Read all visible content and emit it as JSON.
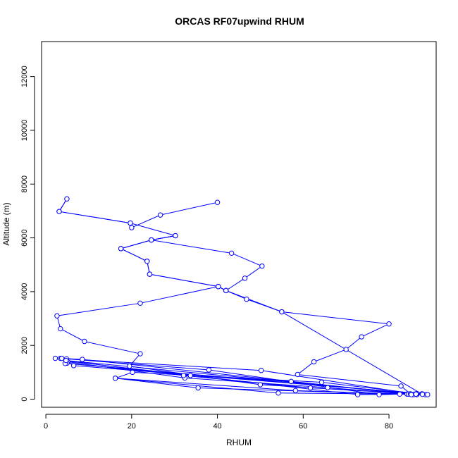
{
  "chart_data": {
    "type": "line",
    "title": "ORCAS RF07upwind RHUM",
    "xlabel": "RHUM",
    "ylabel": "Altitude (m)",
    "xlim": [
      -1,
      91
    ],
    "ylim": [
      -300,
      13300
    ],
    "x_ticks": [
      0,
      20,
      40,
      60,
      80
    ],
    "x_tick_labels": [
      "0",
      "20",
      "40",
      "60",
      "80"
    ],
    "y_ticks": [
      0,
      2000,
      4000,
      6000,
      8000,
      10000,
      12000
    ],
    "y_tick_labels": [
      "0",
      "2000",
      "4000",
      "6000",
      "8000",
      "10000",
      "12000"
    ],
    "grid": false,
    "series": [
      {
        "color": "#0000ff",
        "marker": "open-circle",
        "points": [
          {
            "x": 40.0,
            "y": 7320
          },
          {
            "x": 26.7,
            "y": 6850
          },
          {
            "x": 20.0,
            "y": 6380
          },
          {
            "x": 19.7,
            "y": 6550
          },
          {
            "x": 3.1,
            "y": 6980
          },
          {
            "x": 4.9,
            "y": 7450
          },
          {
            "x": 3.1,
            "y": 6980
          },
          {
            "x": 19.7,
            "y": 6550
          },
          {
            "x": 30.2,
            "y": 6080
          },
          {
            "x": 24.6,
            "y": 5920
          },
          {
            "x": 43.3,
            "y": 5430
          },
          {
            "x": 50.4,
            "y": 4950
          },
          {
            "x": 46.4,
            "y": 4500
          },
          {
            "x": 42.0,
            "y": 4040
          },
          {
            "x": 40.2,
            "y": 4190
          },
          {
            "x": 24.2,
            "y": 4650
          },
          {
            "x": 23.6,
            "y": 5130
          },
          {
            "x": 17.5,
            "y": 5600
          },
          {
            "x": 24.6,
            "y": 5920
          },
          {
            "x": 30.2,
            "y": 6080
          },
          {
            "x": 24.6,
            "y": 5920
          },
          {
            "x": 17.5,
            "y": 5600
          },
          {
            "x": 23.6,
            "y": 5130
          },
          {
            "x": 24.2,
            "y": 4650
          },
          {
            "x": 40.2,
            "y": 4190
          },
          {
            "x": 42.0,
            "y": 4040
          },
          {
            "x": 46.8,
            "y": 3720
          },
          {
            "x": 55.0,
            "y": 3250
          },
          {
            "x": 80.0,
            "y": 2800
          },
          {
            "x": 73.6,
            "y": 2320
          },
          {
            "x": 70.0,
            "y": 1850
          },
          {
            "x": 62.5,
            "y": 1390
          },
          {
            "x": 58.7,
            "y": 920
          },
          {
            "x": 82.8,
            "y": 490
          },
          {
            "x": 85.0,
            "y": 200
          },
          {
            "x": 77.7,
            "y": 170
          },
          {
            "x": 38.0,
            "y": 1090
          },
          {
            "x": 4.8,
            "y": 1500
          },
          {
            "x": 50.2,
            "y": 1070
          },
          {
            "x": 86.0,
            "y": 190
          },
          {
            "x": 72.7,
            "y": 170
          },
          {
            "x": 4.8,
            "y": 1420
          },
          {
            "x": 3.4,
            "y": 1520
          },
          {
            "x": 2.2,
            "y": 1520
          },
          {
            "x": 3.7,
            "y": 1520
          },
          {
            "x": 8.5,
            "y": 1480
          },
          {
            "x": 86.5,
            "y": 170
          },
          {
            "x": 85.7,
            "y": 170
          },
          {
            "x": 65.7,
            "y": 430
          },
          {
            "x": 32.4,
            "y": 790
          },
          {
            "x": 5.1,
            "y": 1390
          },
          {
            "x": 6.5,
            "y": 1250
          },
          {
            "x": 87.7,
            "y": 200
          },
          {
            "x": 88.5,
            "y": 170
          },
          {
            "x": 64.3,
            "y": 630
          },
          {
            "x": 20.2,
            "y": 1000
          },
          {
            "x": 16.2,
            "y": 780
          },
          {
            "x": 58.2,
            "y": 320
          },
          {
            "x": 89.0,
            "y": 170
          },
          {
            "x": 84.2,
            "y": 190
          },
          {
            "x": 57.2,
            "y": 660
          },
          {
            "x": 33.7,
            "y": 880
          },
          {
            "x": 4.9,
            "y": 1340
          },
          {
            "x": 4.5,
            "y": 1330
          },
          {
            "x": 86.5,
            "y": 210
          },
          {
            "x": 61.7,
            "y": 420
          },
          {
            "x": 32.1,
            "y": 880
          },
          {
            "x": 4.7,
            "y": 1440
          },
          {
            "x": 86.3,
            "y": 190
          },
          {
            "x": 50.0,
            "y": 540
          },
          {
            "x": 19.5,
            "y": 1230
          },
          {
            "x": 22.0,
            "y": 1690
          },
          {
            "x": 9.0,
            "y": 2150
          },
          {
            "x": 3.4,
            "y": 2620
          },
          {
            "x": 2.6,
            "y": 3100
          },
          {
            "x": 22.0,
            "y": 3570
          },
          {
            "x": 40.2,
            "y": 4190
          },
          {
            "x": 42.0,
            "y": 4040
          },
          {
            "x": 55.0,
            "y": 3250
          },
          {
            "x": 87.8,
            "y": 180
          },
          {
            "x": 82.5,
            "y": 190
          },
          {
            "x": 35.5,
            "y": 420
          },
          {
            "x": 16.2,
            "y": 780
          },
          {
            "x": 54.2,
            "y": 230
          },
          {
            "x": 84.5,
            "y": 190
          },
          {
            "x": 85.0,
            "y": 190
          },
          {
            "x": 85.2,
            "y": 170
          }
        ]
      }
    ]
  }
}
